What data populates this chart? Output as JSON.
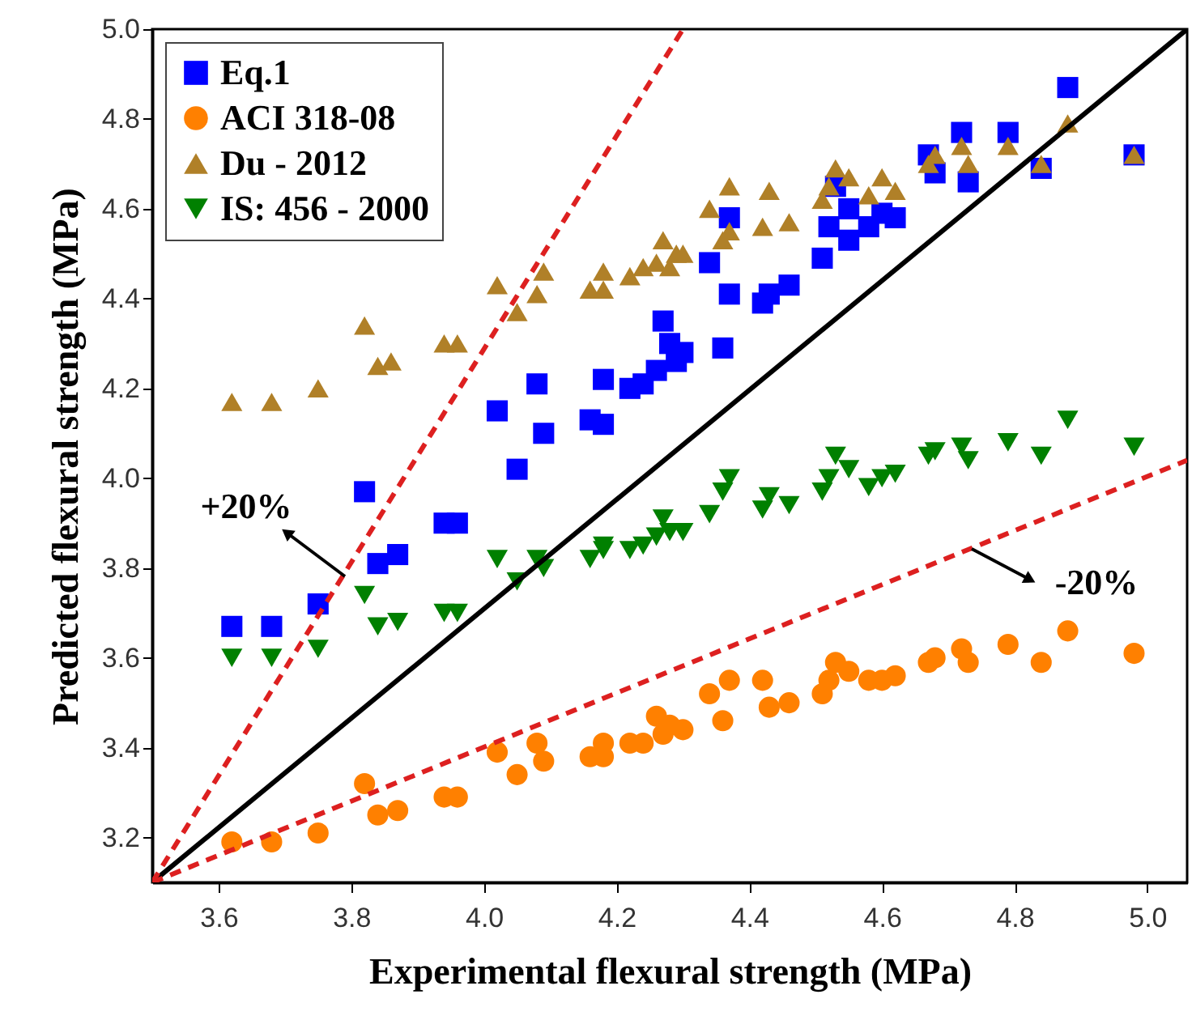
{
  "chart_data": {
    "type": "scatter",
    "xlabel": "Experimental flexural strength (MPa)",
    "ylabel": "Predicted flexural strength (MPa)",
    "xlim": [
      3.5,
      5.06
    ],
    "ylim": [
      3.1,
      5.0
    ],
    "xticks": [
      3.6,
      3.8,
      {
        "value": 4,
        "label": "4.0"
      },
      4.2,
      4.4,
      4.6,
      4.8,
      {
        "value": 5,
        "label": "5.0"
      }
    ],
    "yticks": [
      3.2,
      3.4,
      3.6,
      3.8,
      {
        "value": 4,
        "label": "4.0"
      },
      4.2,
      4.4,
      4.6,
      4.8,
      {
        "value": 5,
        "label": "5.0"
      }
    ],
    "grid": false,
    "legend": "top left",
    "annotations": [
      "+20%",
      "-20%"
    ],
    "series": [
      {
        "name": "Eq.1",
        "marker": "square",
        "color": "#0000ff",
        "x": [
          3.62,
          3.68,
          3.75,
          3.82,
          3.84,
          3.87,
          3.94,
          3.96,
          4.02,
          4.05,
          4.08,
          4.09,
          4.16,
          4.18,
          4.18,
          4.22,
          4.24,
          4.26,
          4.27,
          4.28,
          4.29,
          4.3,
          4.34,
          4.36,
          4.37,
          4.37,
          4.42,
          4.43,
          4.46,
          4.51,
          4.52,
          4.53,
          4.55,
          4.55,
          4.58,
          4.6,
          4.62,
          4.67,
          4.68,
          4.72,
          4.73,
          4.79,
          4.84,
          4.88,
          4.98
        ],
        "values": [
          3.67,
          3.67,
          3.72,
          3.97,
          3.81,
          3.83,
          3.9,
          3.9,
          4.15,
          4.02,
          4.21,
          4.1,
          4.13,
          4.12,
          4.22,
          4.2,
          4.21,
          4.24,
          4.35,
          4.3,
          4.26,
          4.28,
          4.48,
          4.29,
          4.41,
          4.58,
          4.39,
          4.41,
          4.43,
          4.49,
          4.56,
          4.65,
          4.53,
          4.6,
          4.56,
          4.59,
          4.58,
          4.72,
          4.68,
          4.77,
          4.66,
          4.77,
          4.69,
          4.87,
          4.72
        ]
      },
      {
        "name": "ACI 318-08",
        "marker": "circle",
        "color": "#ff8000",
        "x": [
          3.62,
          3.68,
          3.75,
          3.82,
          3.84,
          3.87,
          3.94,
          3.96,
          4.02,
          4.05,
          4.08,
          4.09,
          4.16,
          4.18,
          4.18,
          4.22,
          4.24,
          4.26,
          4.27,
          4.28,
          4.3,
          4.34,
          4.36,
          4.37,
          4.42,
          4.43,
          4.46,
          4.51,
          4.52,
          4.53,
          4.55,
          4.58,
          4.6,
          4.62,
          4.67,
          4.68,
          4.72,
          4.73,
          4.79,
          4.84,
          4.88,
          4.98
        ],
        "values": [
          3.19,
          3.19,
          3.21,
          3.32,
          3.25,
          3.26,
          3.29,
          3.29,
          3.39,
          3.34,
          3.41,
          3.37,
          3.38,
          3.38,
          3.41,
          3.41,
          3.41,
          3.47,
          3.43,
          3.45,
          3.44,
          3.52,
          3.46,
          3.55,
          3.55,
          3.49,
          3.5,
          3.52,
          3.55,
          3.59,
          3.57,
          3.55,
          3.55,
          3.56,
          3.59,
          3.6,
          3.62,
          3.59,
          3.63,
          3.59,
          3.66,
          3.61
        ]
      },
      {
        "name": "Du - 2012",
        "marker": "triangle",
        "color": "#b08028",
        "x": [
          3.62,
          3.68,
          3.75,
          3.82,
          3.84,
          3.86,
          3.94,
          3.96,
          4.02,
          4.05,
          4.08,
          4.09,
          4.16,
          4.18,
          4.18,
          4.22,
          4.24,
          4.26,
          4.27,
          4.28,
          4.29,
          4.3,
          4.34,
          4.36,
          4.37,
          4.37,
          4.42,
          4.43,
          4.46,
          4.51,
          4.52,
          4.53,
          4.55,
          4.58,
          4.6,
          4.62,
          4.67,
          4.68,
          4.72,
          4.73,
          4.79,
          4.84,
          4.88,
          4.98
        ],
        "values": [
          4.17,
          4.17,
          4.2,
          4.34,
          4.25,
          4.26,
          4.3,
          4.3,
          4.43,
          4.37,
          4.41,
          4.46,
          4.42,
          4.42,
          4.46,
          4.45,
          4.47,
          4.48,
          4.53,
          4.47,
          4.5,
          4.5,
          4.6,
          4.53,
          4.55,
          4.65,
          4.56,
          4.64,
          4.57,
          4.62,
          4.65,
          4.69,
          4.67,
          4.63,
          4.67,
          4.64,
          4.7,
          4.72,
          4.74,
          4.7,
          4.74,
          4.7,
          4.79,
          4.72
        ]
      },
      {
        "name": "IS: 456 - 2000",
        "marker": "triangle-down",
        "color": "#008000",
        "x": [
          3.62,
          3.68,
          3.75,
          3.82,
          3.84,
          3.87,
          3.94,
          3.96,
          4.02,
          4.05,
          4.08,
          4.09,
          4.16,
          4.18,
          4.18,
          4.22,
          4.24,
          4.26,
          4.27,
          4.28,
          4.3,
          4.34,
          4.36,
          4.37,
          4.42,
          4.43,
          4.46,
          4.51,
          4.52,
          4.53,
          4.55,
          4.58,
          4.6,
          4.62,
          4.67,
          4.68,
          4.72,
          4.73,
          4.79,
          4.84,
          4.88,
          4.98
        ],
        "values": [
          3.6,
          3.6,
          3.62,
          3.74,
          3.67,
          3.68,
          3.7,
          3.7,
          3.82,
          3.77,
          3.82,
          3.8,
          3.82,
          3.84,
          3.85,
          3.84,
          3.85,
          3.87,
          3.91,
          3.88,
          3.88,
          3.92,
          3.97,
          4.0,
          3.93,
          3.96,
          3.94,
          3.97,
          4.0,
          4.05,
          4.02,
          3.98,
          4.0,
          4.01,
          4.05,
          4.06,
          4.07,
          4.04,
          4.08,
          4.05,
          4.13,
          4.07
        ]
      },
      {
        "type": "line",
        "line_style": "solid",
        "color": "#000000",
        "x": [
          3.5,
          5.06
        ],
        "values": [
          3.1,
          5.0
        ]
      },
      {
        "type": "line",
        "line_style": "dashed",
        "color": "#dd2020",
        "x": [
          3.5,
          4.3
        ],
        "values": [
          3.1,
          5.0
        ]
      },
      {
        "type": "line",
        "line_style": "dashed",
        "color": "#dd2020",
        "x": [
          3.5,
          5.06
        ],
        "values": [
          3.1,
          4.04
        ]
      }
    ]
  }
}
